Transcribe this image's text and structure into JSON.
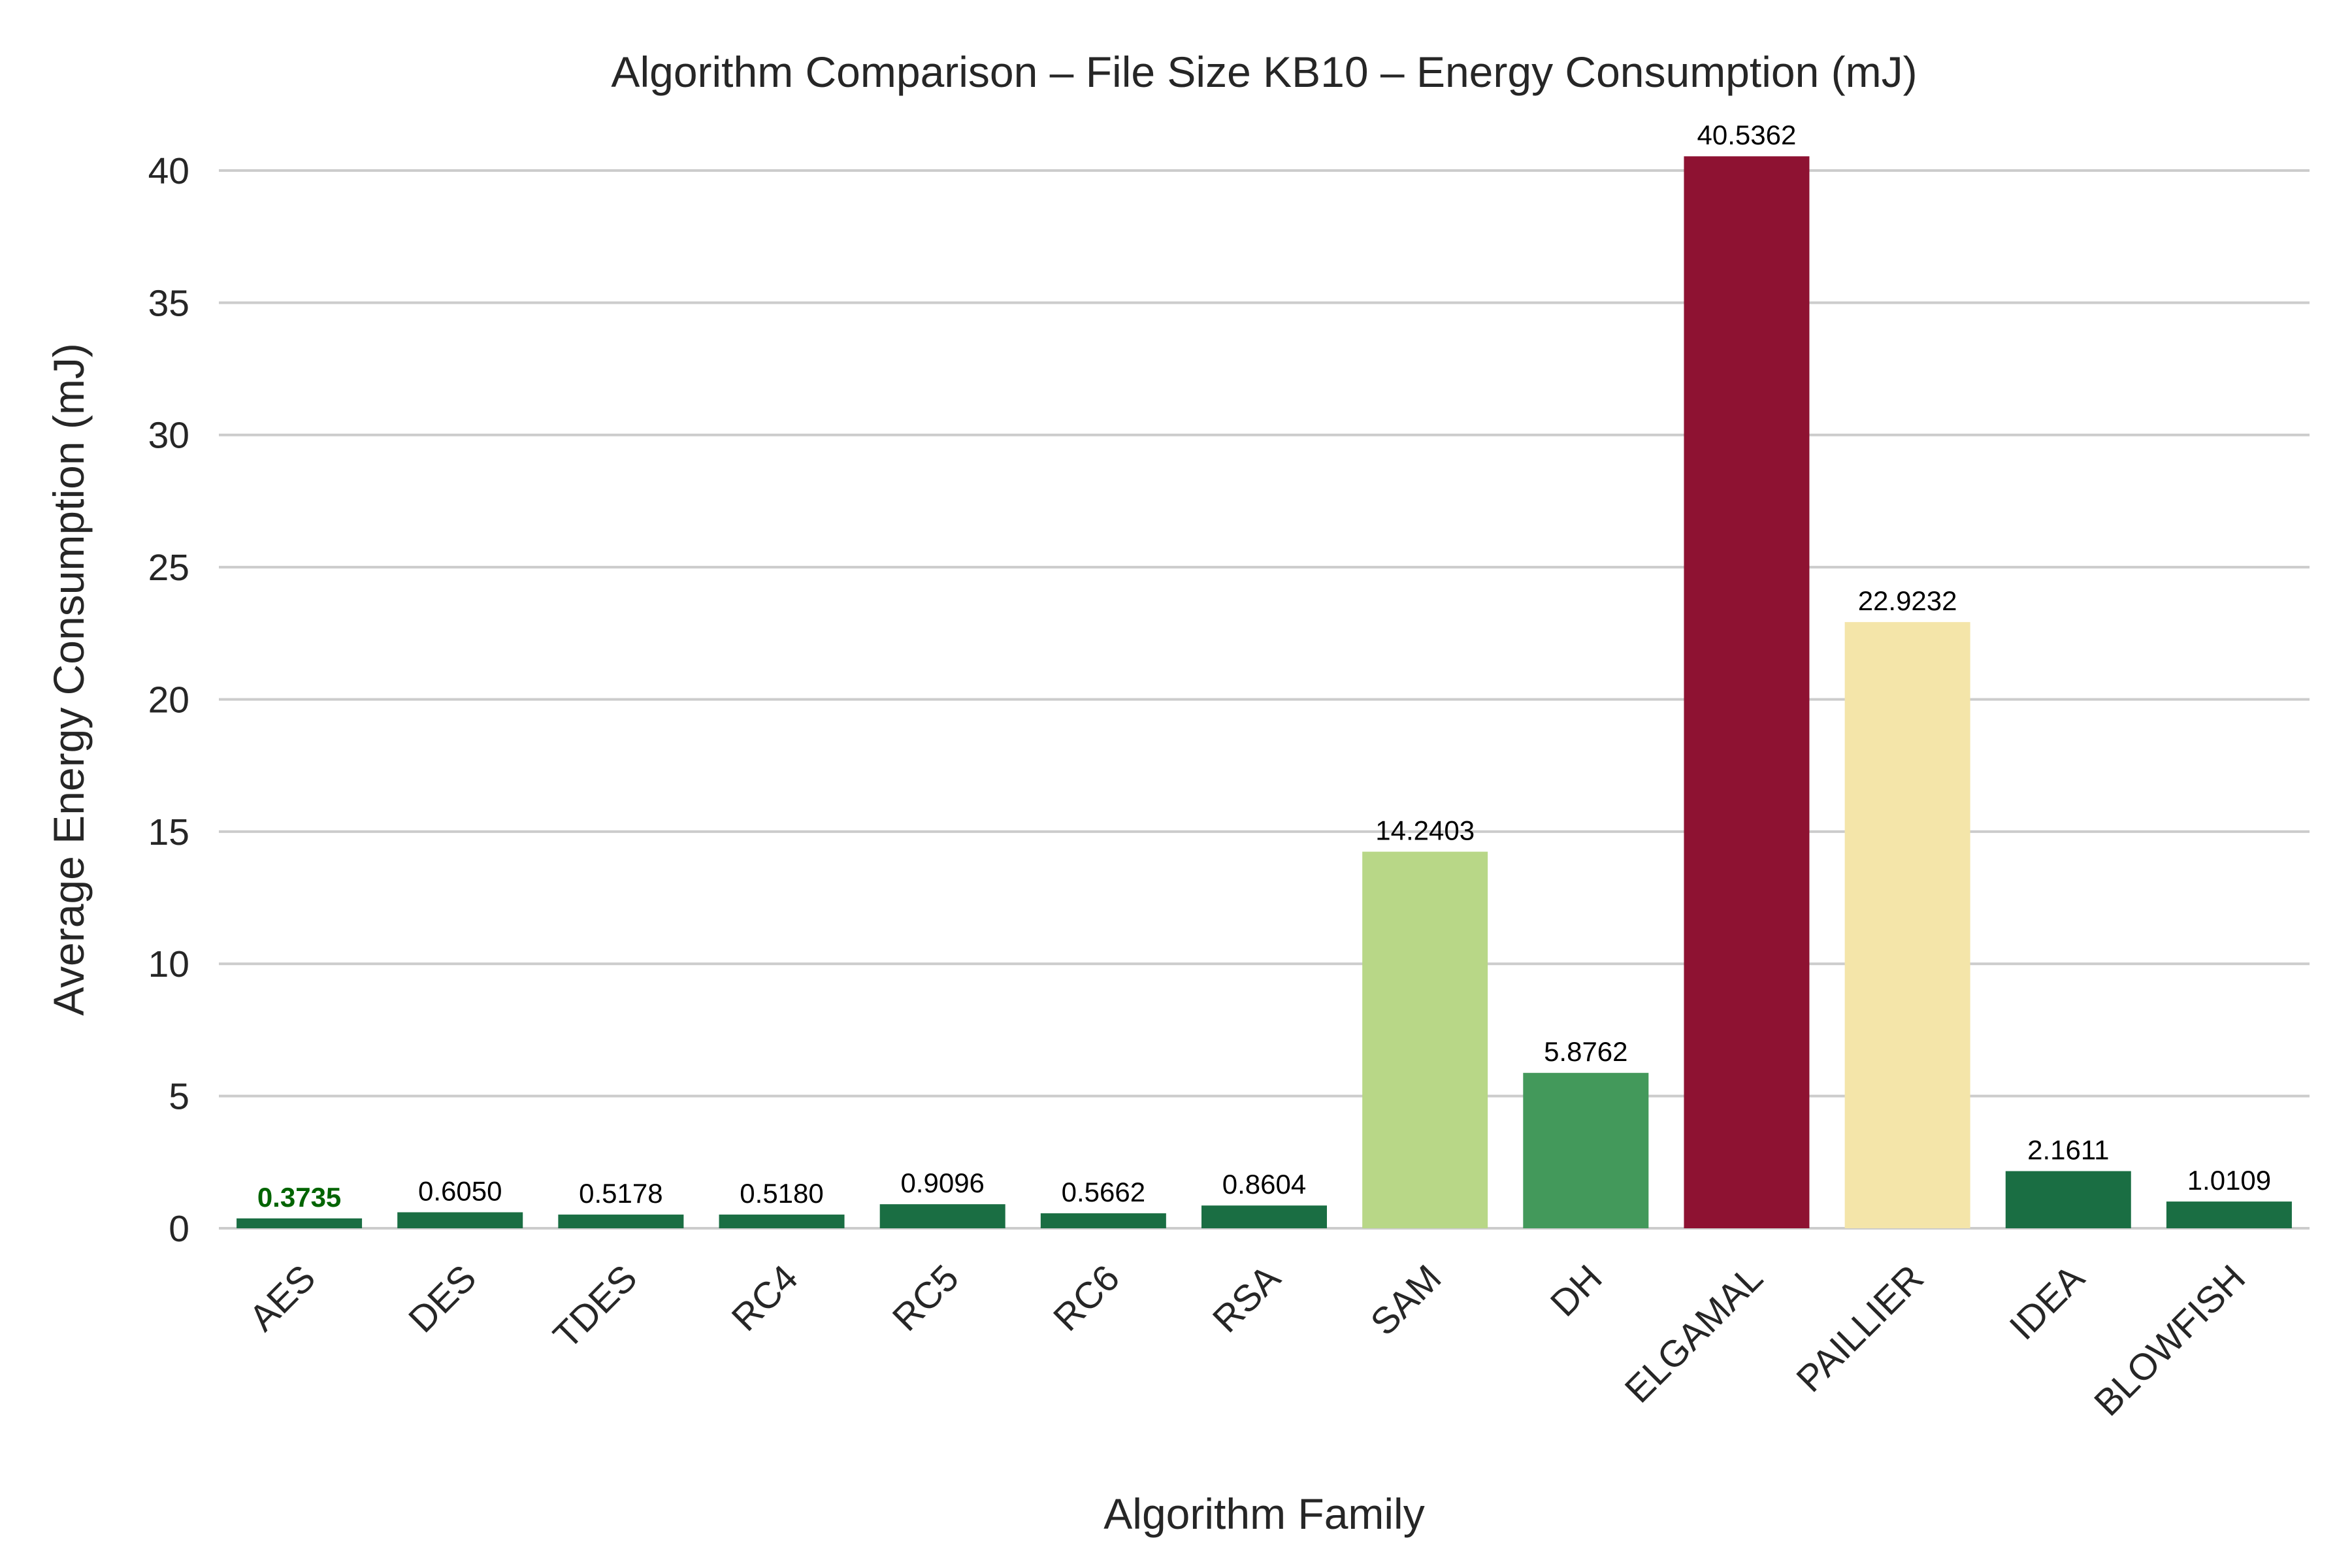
{
  "chart_data": {
    "type": "bar",
    "title": "Algorithm Comparison – File Size KB10 – Energy Consumption (mJ)",
    "xlabel": "Algorithm Family",
    "ylabel": "Average Energy Consumption (mJ)",
    "ylim": [
      0,
      42
    ],
    "yticks": [
      0,
      5,
      10,
      15,
      20,
      25,
      30,
      35,
      40
    ],
    "grid": "horizontal",
    "categories": [
      "AES",
      "DES",
      "TDES",
      "RC4",
      "RC5",
      "RC6",
      "RSA",
      "SAM",
      "DH",
      "ELGAMAL",
      "PAILLIER",
      "IDEA",
      "BLOWFISH"
    ],
    "values": [
      0.3735,
      0.605,
      0.5178,
      0.518,
      0.9096,
      0.5662,
      0.8604,
      14.2403,
      5.8762,
      40.5362,
      22.9232,
      2.1611,
      1.0109
    ],
    "value_labels": [
      "0.3735",
      "0.6050",
      "0.5178",
      "0.5180",
      "0.9096",
      "0.5662",
      "0.8604",
      "14.2403",
      "5.8762",
      "40.5362",
      "22.9232",
      "2.1611",
      "1.0109"
    ],
    "colors": [
      "#1a6e43",
      "#1a6e43",
      "#1a6e43",
      "#1a6e43",
      "#1a6e43",
      "#1a6e43",
      "#1a6e43",
      "#b8d787",
      "#43995b",
      "#8e1232",
      "#f4e5a9",
      "#1a6e43",
      "#1a6e43"
    ],
    "highlight_label_color": "#006400"
  }
}
